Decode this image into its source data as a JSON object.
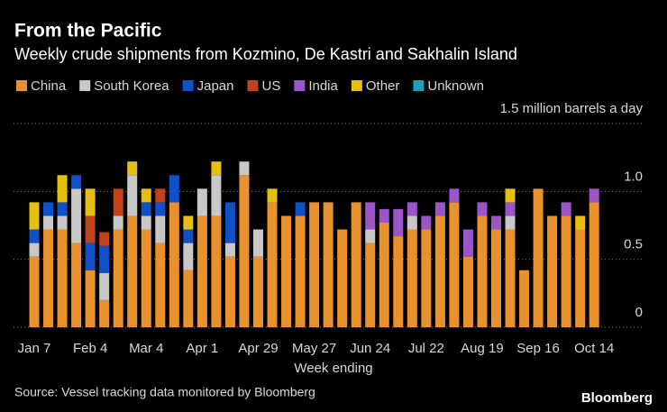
{
  "chart_data": {
    "type": "stacked_bar",
    "title": "From the Pacific",
    "subtitle": "Weekly crude shipments from Kozmino, De Kastri and Sakhalin Island",
    "x_label": "Week ending",
    "source": "Source: Vessel tracking data monitored by Bloomberg",
    "logo": "Bloomberg",
    "categories": [
      "Jan 7",
      null,
      null,
      null,
      "Feb 4",
      null,
      null,
      null,
      "Mar 4",
      null,
      null,
      null,
      "Apr 1",
      null,
      null,
      null,
      "Apr 29",
      null,
      null,
      null,
      "May 27",
      null,
      null,
      null,
      "Jun 24",
      null,
      null,
      null,
      "Jul 22",
      null,
      null,
      null,
      "Aug 19",
      null,
      null,
      null,
      "Sep 16",
      null,
      null,
      null,
      "Oct 14"
    ],
    "series": [
      {
        "name": "China",
        "color": "#e8912d",
        "values": [
          0.52,
          0.72,
          0.72,
          0.62,
          0.42,
          0.2,
          0.72,
          0.82,
          0.72,
          0.62,
          0.92,
          0.42,
          0.82,
          0.82,
          0.52,
          1.12,
          0.52,
          0.92,
          0.82,
          0.82,
          0.92,
          0.92,
          0.72,
          0.92,
          0.62,
          0.77,
          0.67,
          0.72,
          0.72,
          0.82,
          0.92,
          0.52,
          0.82,
          0.72,
          0.72,
          0.42,
          1.02,
          0.82,
          0.82,
          0.72,
          0.92
        ]
      },
      {
        "name": "South Korea",
        "color": "#c8c8c8",
        "values": [
          0.1,
          0.1,
          0.1,
          0.4,
          0,
          0.2,
          0.1,
          0.3,
          0.1,
          0.2,
          0,
          0.2,
          0.2,
          0.3,
          0.1,
          0.1,
          0.2,
          0,
          0,
          0,
          0,
          0,
          0,
          0,
          0.1,
          0,
          0,
          0.1,
          0,
          0,
          0,
          0,
          0,
          0,
          0.1,
          0,
          0,
          0,
          0,
          0,
          0
        ]
      },
      {
        "name": "Japan",
        "color": "#1050c8",
        "values": [
          0.1,
          0.1,
          0.1,
          0.1,
          0.2,
          0.2,
          0,
          0,
          0.1,
          0.1,
          0.2,
          0.1,
          0,
          0,
          0.3,
          0,
          0,
          0,
          0,
          0.1,
          0,
          0,
          0,
          0,
          0,
          0,
          0,
          0,
          0,
          0,
          0,
          0,
          0,
          0,
          0,
          0,
          0,
          0,
          0,
          0,
          0
        ]
      },
      {
        "name": "US",
        "color": "#c0431a",
        "values": [
          0,
          0,
          0,
          0,
          0.2,
          0.1,
          0.2,
          0,
          0,
          0.1,
          0,
          0,
          0,
          0,
          0,
          0,
          0,
          0,
          0,
          0,
          0,
          0,
          0,
          0,
          0,
          0,
          0,
          0,
          0,
          0,
          0,
          0,
          0,
          0,
          0,
          0,
          0,
          0,
          0,
          0,
          0
        ]
      },
      {
        "name": "India",
        "color": "#9b55c8",
        "values": [
          0,
          0,
          0,
          0,
          0,
          0,
          0,
          0,
          0,
          0,
          0,
          0,
          0,
          0,
          0,
          0,
          0,
          0,
          0,
          0,
          0,
          0,
          0,
          0,
          0.2,
          0.1,
          0.2,
          0.1,
          0.1,
          0.1,
          0.1,
          0.2,
          0.1,
          0.1,
          0.1,
          0,
          0,
          0,
          0.1,
          0,
          0.1
        ]
      },
      {
        "name": "Other",
        "color": "#e5c010",
        "values": [
          0.2,
          0,
          0.2,
          0,
          0.2,
          0,
          0,
          0.1,
          0.1,
          0,
          0,
          0.1,
          0,
          0.1,
          0,
          0,
          0,
          0.1,
          0,
          0,
          0,
          0,
          0,
          0,
          0,
          0,
          0,
          0,
          0,
          0,
          0,
          0,
          0,
          0,
          0.1,
          0,
          0,
          0,
          0,
          0.1,
          0
        ]
      },
      {
        "name": "Unknown",
        "color": "#1aa0b8",
        "values": [
          0,
          0,
          0,
          0,
          0,
          0,
          0,
          0,
          0,
          0,
          0,
          0,
          0,
          0,
          0,
          0,
          0,
          0,
          0,
          0,
          0,
          0,
          0,
          0,
          0,
          0,
          0,
          0,
          0,
          0,
          0,
          0,
          0,
          0,
          0,
          0,
          0,
          0,
          0,
          0,
          0
        ]
      }
    ],
    "ylim": [
      0,
      1.5
    ],
    "yticks": [
      0,
      0.5,
      {
        "value": 1,
        "label": "1.0"
      },
      {
        "value": 1.5,
        "label": "1.5 million barrels a day"
      }
    ],
    "grid": true
  }
}
